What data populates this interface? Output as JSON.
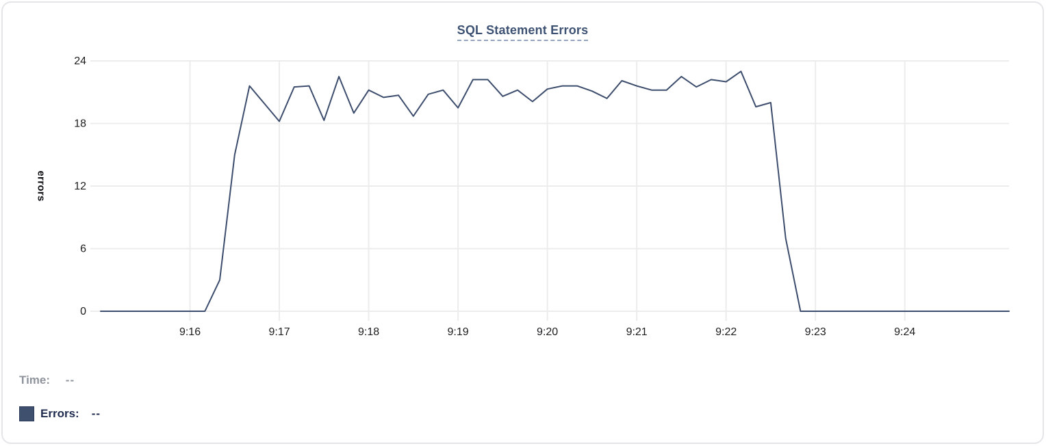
{
  "chart_data": {
    "type": "line",
    "title": "SQL Statement Errors",
    "ylabel": "errors",
    "series_name": "Errors",
    "x_start": "9:15:00",
    "x_step_seconds": 10,
    "x_tick_labels": [
      "9:16",
      "9:17",
      "9:18",
      "9:19",
      "9:20",
      "9:21",
      "9:22",
      "9:23",
      "9:24"
    ],
    "x_tick_first_index": 6,
    "x_tick_step": 6,
    "y_ticks": [
      0,
      6,
      12,
      18,
      24
    ],
    "ylim": [
      0,
      24
    ],
    "grid": true,
    "legend_position": "none",
    "line_color": "#3c4c6c",
    "values": [
      0,
      0,
      0,
      0,
      0,
      0,
      0,
      0,
      3,
      15,
      21.6,
      19.9,
      18.2,
      21.5,
      21.6,
      18.3,
      22.5,
      19,
      21.2,
      20.5,
      20.7,
      18.7,
      20.8,
      21.2,
      19.5,
      22.2,
      22.2,
      20.6,
      21.2,
      20.1,
      21.3,
      21.6,
      21.6,
      21.1,
      20.4,
      22.1,
      21.6,
      21.2,
      21.2,
      22.5,
      21.5,
      22.2,
      22,
      23,
      19.6,
      20,
      7,
      0,
      0,
      0,
      0,
      0,
      0,
      0,
      0,
      0,
      0,
      0,
      0,
      0,
      0,
      0
    ]
  },
  "tooltip_readout": {
    "time_label": "Time:",
    "time_value": "--",
    "errors_label": "Errors:",
    "errors_value": "--",
    "swatch_color": "#3f4f6e"
  },
  "colors": {
    "grid": "#ececec",
    "axis_text": "#1c1c1e",
    "line": "#3c4c6c"
  }
}
